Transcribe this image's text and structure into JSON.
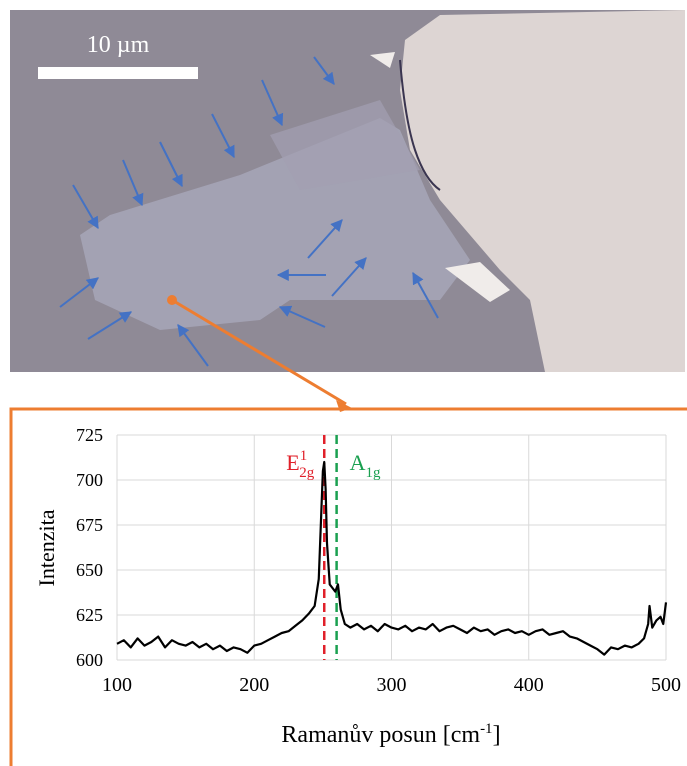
{
  "chart_data": {
    "type": "line",
    "scale_bar": "10 µm",
    "ylabel": "Intenzita",
    "xlabel": "Ramanův posun [cm",
    "xlabel_sup": "-1",
    "xlabel_end": "]",
    "color": "#000000",
    "grid": true,
    "xlim": [
      100,
      500
    ],
    "ylim": [
      600,
      725
    ],
    "xticks": [
      100,
      200,
      300,
      400,
      500
    ],
    "yticks": [
      600,
      625,
      650,
      675,
      700,
      725
    ],
    "markers": [
      {
        "base": "E",
        "sup": "1",
        "sub": "2g",
        "x": 251,
        "color": "#e0202a"
      },
      {
        "base": "A",
        "sub": "1g",
        "x": 260,
        "color": "#1aa050"
      }
    ],
    "x": [
      100,
      105,
      110,
      115,
      120,
      125,
      130,
      135,
      140,
      145,
      150,
      155,
      160,
      165,
      170,
      175,
      180,
      185,
      190,
      195,
      200,
      205,
      210,
      215,
      220,
      225,
      230,
      235,
      240,
      244,
      247,
      249,
      250,
      251,
      252,
      253,
      255,
      257,
      259,
      261,
      263,
      266,
      270,
      275,
      280,
      285,
      290,
      295,
      300,
      305,
      310,
      315,
      320,
      325,
      330,
      335,
      340,
      345,
      350,
      355,
      360,
      365,
      370,
      375,
      380,
      385,
      390,
      395,
      400,
      405,
      410,
      415,
      420,
      425,
      430,
      435,
      440,
      445,
      450,
      455,
      460,
      465,
      470,
      475,
      480,
      484,
      487,
      488,
      490,
      493,
      496,
      498,
      500
    ],
    "values": [
      609,
      611,
      607,
      612,
      608,
      610,
      613,
      607,
      611,
      609,
      608,
      610,
      607,
      609,
      606,
      608,
      605,
      607,
      606,
      604,
      608,
      609,
      611,
      613,
      615,
      616,
      619,
      622,
      626,
      630,
      645,
      685,
      705,
      710,
      695,
      665,
      642,
      640,
      638,
      642,
      628,
      620,
      618,
      620,
      617,
      619,
      616,
      620,
      618,
      617,
      619,
      616,
      618,
      617,
      620,
      616,
      618,
      619,
      617,
      615,
      618,
      616,
      617,
      614,
      616,
      617,
      615,
      616,
      614,
      616,
      617,
      614,
      615,
      616,
      613,
      612,
      610,
      608,
      606,
      603,
      607,
      606,
      608,
      607,
      609,
      612,
      620,
      630,
      618,
      622,
      624,
      620,
      632
    ]
  }
}
